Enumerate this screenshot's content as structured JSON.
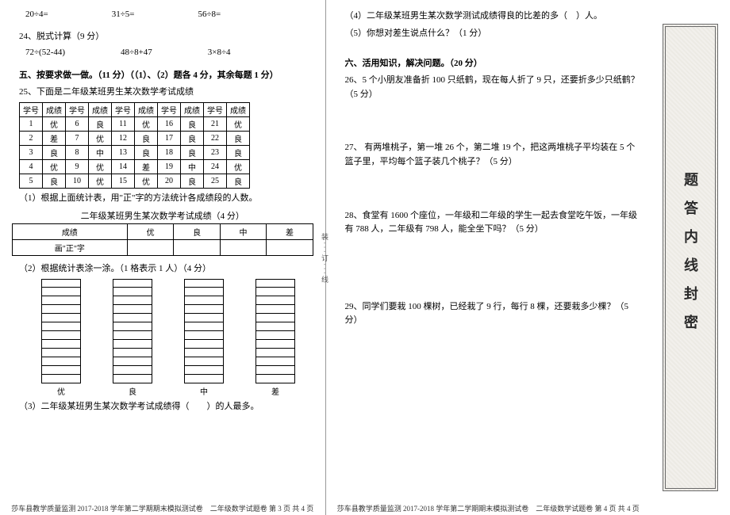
{
  "left": {
    "calc1": [
      "20÷4=",
      "31÷5=",
      "56÷8="
    ],
    "q24_title": "24、脱式计算（9 分）",
    "q24_items": [
      "72÷(52-44)",
      "48÷8+47",
      "3×8÷4"
    ],
    "sec5": "五、按要求做一做。（11 分）（（1）、（2）题各 4 分，其余每题 1 分）",
    "q25_title": "25、下面是二年级某班男生某次数学考试成绩",
    "table_headers": [
      "学号",
      "成绩",
      "学号",
      "成绩",
      "学号",
      "成绩",
      "学号",
      "成绩",
      "学号",
      "成绩"
    ],
    "table_rows": [
      [
        "1",
        "优",
        "6",
        "良",
        "11",
        "优",
        "16",
        "良",
        "21",
        "优"
      ],
      [
        "2",
        "差",
        "7",
        "优",
        "12",
        "良",
        "17",
        "良",
        "22",
        "良"
      ],
      [
        "3",
        "良",
        "8",
        "中",
        "13",
        "良",
        "18",
        "良",
        "23",
        "良"
      ],
      [
        "4",
        "优",
        "9",
        "优",
        "14",
        "差",
        "19",
        "中",
        "24",
        "优"
      ],
      [
        "5",
        "良",
        "10",
        "优",
        "15",
        "优",
        "20",
        "良",
        "25",
        "良"
      ]
    ],
    "q25_1": "（1）根据上面统计表，用\"正\"字的方法统计各成绩段的人数。",
    "tally_title": "二年级某班男生某次数学考试成绩（4 分）",
    "tally_cols": [
      "成绩",
      "优",
      "良",
      "中",
      "差"
    ],
    "tally_row_label": "画\"正\"字",
    "q25_2": "（2）根据统计表涂一涂。（1 格表示 1 人）（4 分）",
    "chart_labels": [
      "优",
      "良",
      "中",
      "差"
    ],
    "chart_rows": 12,
    "q25_3": "（3）二年级某班男生某次数学考试成绩得（　　）的人最多。",
    "footer": "莎车县教学质量监测 2017-2018 学年第二学期期末模拟测试卷　二年级数学试题卷 第 3 页 共 4 页"
  },
  "right": {
    "q25_4": "（4）二年级某班男生某次数学测试成绩得良的比差的多（　）人。",
    "q25_5": "（5）你想对差生说点什么？（1 分）",
    "sec6": "六、活用知识，解决问题。（20 分）",
    "q26": "26、5 个小朋友准备折 100 只纸鹤，现在每人折了 9 只，还要折多少只纸鹤？（5 分）",
    "q27": "27、 有两堆桃子，第一堆 26 个，第二堆 19 个，把这两堆桃子平均装在 5 个篮子里，平均每个篮子装几个桃子？（5 分）",
    "q28": "28、食堂有 1600 个座位，一年级和二年级的学生一起去食堂吃午饭，一年级有 788 人，二年级有 798 人，能全坐下吗？（5 分）",
    "q29": "29、同学们要栽 100 棵树，已经栽了 9 行，每行 8 棵，还要栽多少棵？（5 分）",
    "footer": "莎车县教学质量监测 2017-2018 学年第二学期期末模拟测试卷　二年级数学试题卷 第 4 页 共 4 页",
    "stamp": "题答内线封密",
    "binding": "装 · · · 订 · · · 线"
  }
}
